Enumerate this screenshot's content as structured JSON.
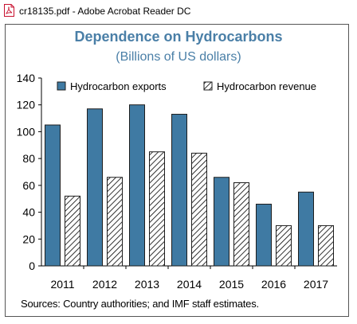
{
  "window": {
    "title": "cr18135.pdf - Adobe Acrobat Reader DC",
    "icon": "pdf-file-icon"
  },
  "chart_data": {
    "type": "bar",
    "title": "Dependence on Hydrocarbons",
    "subtitle": "(Billions of US dollars)",
    "categories": [
      "2011",
      "2012",
      "2013",
      "2014",
      "2015",
      "2016",
      "2017"
    ],
    "series": [
      {
        "name": "Hydrocarbon exports",
        "values": [
          105,
          117,
          120,
          113,
          66,
          46,
          55
        ],
        "color": "#3f7aa3",
        "pattern": "solid"
      },
      {
        "name": "Hydrocarbon revenue",
        "values": [
          52,
          66,
          85,
          84,
          62,
          30,
          30
        ],
        "color": "#000000",
        "pattern": "diagonal-hatch"
      }
    ],
    "ylim": [
      0,
      140
    ],
    "yticks": [
      0,
      20,
      40,
      60,
      80,
      100,
      120,
      140
    ],
    "legend": "top",
    "grid": false,
    "source": "Sources: Country authorities; and IMF staff estimates."
  }
}
